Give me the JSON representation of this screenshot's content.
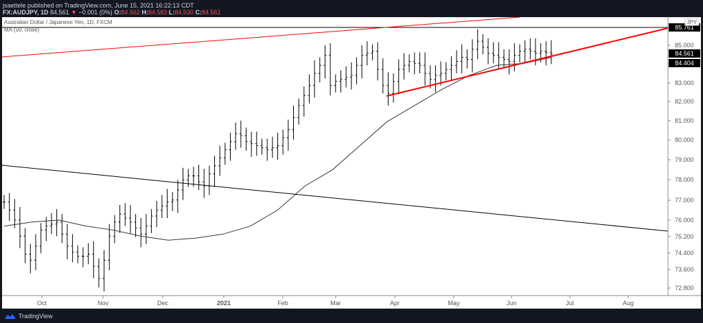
{
  "header": {
    "published": "jsaettele published on TradingView.com, June 15, 2021 16:22:13 CDT",
    "symbol": "FX:AUDJPY, 1D",
    "last": "84.561",
    "change": "−0.001 (0%)",
    "open_label": "O:",
    "open": "84.562",
    "high_label": "H:",
    "high": "84.583",
    "low_label": "L:",
    "low": "84.530",
    "close_label": "C:",
    "close": "84.561"
  },
  "legend": {
    "title": "Australian Dollar / Japanese Yen, 1D, FXCM",
    "indicator": "MA (50, close)"
  },
  "currency": "JPY",
  "price_labels": {
    "top": "85.761",
    "last": "84.561",
    "ma": "84.404"
  },
  "footer": {
    "brand": "TradingView",
    "logo_icon": "tradingview-cloud-icon"
  },
  "colors": {
    "up_down_bar": "#000000",
    "trendline": "#ff0000",
    "ma": "#333333"
  },
  "chart_data": {
    "type": "ohlc-bar",
    "y_ticks": [
      "85.000",
      "83.000",
      "82.000",
      "81.000",
      "80.000",
      "79.000",
      "78.000",
      "77.000",
      "76.000",
      "75.200",
      "74.400",
      "73.600",
      "72.800"
    ],
    "x_ticks": [
      "Oct",
      "Nov",
      "Dec",
      "2021",
      "Feb",
      "Mar",
      "Apr",
      "May",
      "Jun",
      "Jul",
      "Aug"
    ],
    "closes": [
      77.2,
      76.8,
      76.3,
      75.5,
      74.6,
      74.3,
      75.0,
      75.8,
      76.0,
      76.1,
      76.2,
      75.6,
      75.0,
      74.7,
      74.5,
      74.5,
      74.6,
      74.0,
      73.4,
      74.3,
      75.5,
      76.2,
      76.6,
      76.4,
      76.2,
      75.9,
      75.6,
      76.0,
      76.5,
      76.8,
      77.0,
      77.2,
      77.3,
      77.8,
      78.3,
      78.5,
      78.5,
      78.2,
      78.0,
      78.6,
      79.0,
      79.4,
      79.8,
      80.2,
      80.6,
      80.5,
      80.2,
      80.1,
      80.0,
      79.9,
      79.8,
      79.9,
      80.0,
      80.4,
      80.8,
      81.4,
      82.0,
      82.5,
      83.0,
      83.6,
      84.0,
      84.5,
      83.0,
      83.2,
      83.3,
      83.4,
      83.5,
      84.0,
      84.5,
      84.6,
      84.7,
      83.8,
      83.0,
      82.6,
      83.2,
      83.8,
      84.0,
      84.2,
      84.1,
      84.0,
      83.6,
      83.3,
      83.5,
      83.6,
      83.8,
      84.0,
      84.2,
      84.4,
      84.3,
      84.8,
      85.2,
      84.9,
      84.6,
      84.5,
      84.4,
      84.3,
      84.2,
      84.5,
      84.7,
      84.8,
      84.7,
      84.6,
      84.7,
      84.65,
      84.56
    ],
    "ma50": [
      76.0,
      76.2,
      76.3,
      76.0,
      75.8,
      75.5,
      75.3,
      75.4,
      75.6,
      76.0,
      76.8,
      78.0,
      78.8,
      80.0,
      81.2,
      82.0,
      82.8,
      83.5,
      84.0,
      84.1,
      84.4
    ]
  }
}
